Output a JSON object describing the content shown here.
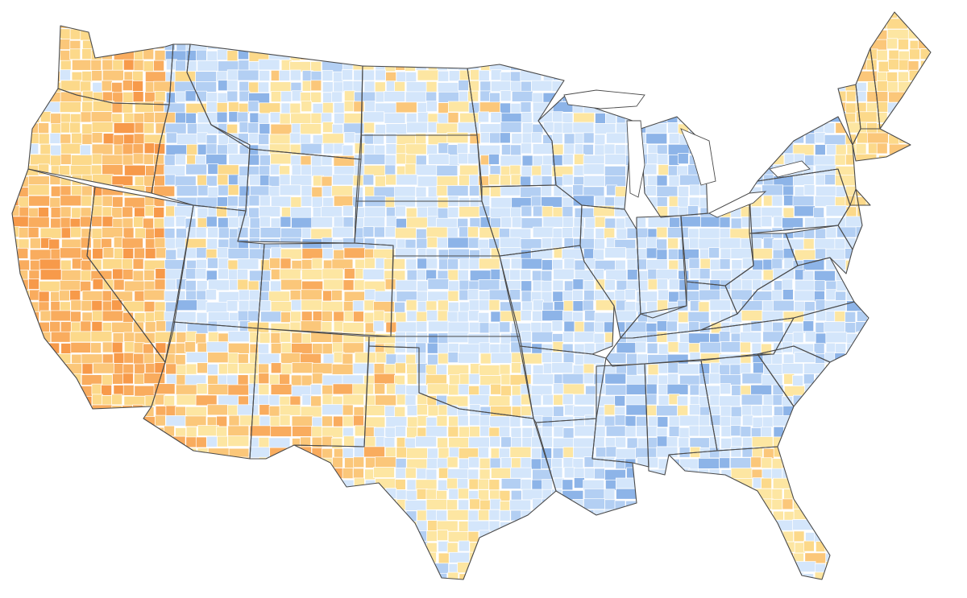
{
  "map": {
    "palette": {
      "deep_blue": "#8db4e8",
      "mid_blue": "#b3cff3",
      "light_blue": "#d4e6fb",
      "pale_yellow": "#fde6a2",
      "yellow": "#fcd98a",
      "light_orange": "#fbc77a",
      "orange": "#f9ac5e",
      "dark_orange": "#f79a4a",
      "state_border": "#4a4a4a",
      "county_border": "#ffffff"
    },
    "states": [
      {
        "name": "WA",
        "level": "yellow"
      },
      {
        "name": "OR",
        "level": "yellow"
      },
      {
        "name": "CA",
        "level": "orange"
      },
      {
        "name": "NV",
        "level": "pale_yellow"
      },
      {
        "name": "ID",
        "level": "light_blue"
      },
      {
        "name": "MT",
        "level": "light_blue"
      },
      {
        "name": "WY",
        "level": "mid_blue"
      },
      {
        "name": "UT",
        "level": "mid_blue"
      },
      {
        "name": "AZ",
        "level": "pale_yellow"
      },
      {
        "name": "CO",
        "level": "pale_yellow"
      },
      {
        "name": "NM",
        "level": "light_orange"
      },
      {
        "name": "ND",
        "level": "light_blue"
      },
      {
        "name": "SD",
        "level": "pale_yellow"
      },
      {
        "name": "NE",
        "level": "light_blue"
      },
      {
        "name": "KS",
        "level": "light_blue"
      },
      {
        "name": "OK",
        "level": "light_blue"
      },
      {
        "name": "TX",
        "level": "pale_yellow"
      },
      {
        "name": "MN",
        "level": "pale_yellow"
      },
      {
        "name": "IA",
        "level": "pale_yellow"
      },
      {
        "name": "MO",
        "level": "light_blue"
      },
      {
        "name": "AR",
        "level": "light_blue"
      },
      {
        "name": "LA",
        "level": "light_blue"
      },
      {
        "name": "WI",
        "level": "light_blue"
      },
      {
        "name": "IL",
        "level": "light_blue"
      },
      {
        "name": "MI",
        "level": "light_blue"
      },
      {
        "name": "IN",
        "level": "light_blue"
      },
      {
        "name": "OH",
        "level": "light_blue"
      },
      {
        "name": "KY",
        "level": "mid_blue"
      },
      {
        "name": "TN",
        "level": "mid_blue"
      },
      {
        "name": "MS",
        "level": "light_blue"
      },
      {
        "name": "AL",
        "level": "light_blue"
      },
      {
        "name": "GA",
        "level": "light_blue"
      },
      {
        "name": "FL",
        "level": "pale_yellow"
      },
      {
        "name": "SC",
        "level": "light_blue"
      },
      {
        "name": "NC",
        "level": "light_blue"
      },
      {
        "name": "VA",
        "level": "light_blue"
      },
      {
        "name": "WV",
        "level": "mid_blue"
      },
      {
        "name": "PA",
        "level": "light_blue"
      },
      {
        "name": "NY",
        "level": "yellow"
      },
      {
        "name": "VT",
        "level": "yellow"
      },
      {
        "name": "NH",
        "level": "yellow"
      },
      {
        "name": "ME",
        "level": "pale_yellow"
      },
      {
        "name": "MA",
        "level": "yellow"
      },
      {
        "name": "NJ",
        "level": "yellow"
      },
      {
        "name": "MD",
        "level": "yellow"
      }
    ]
  }
}
